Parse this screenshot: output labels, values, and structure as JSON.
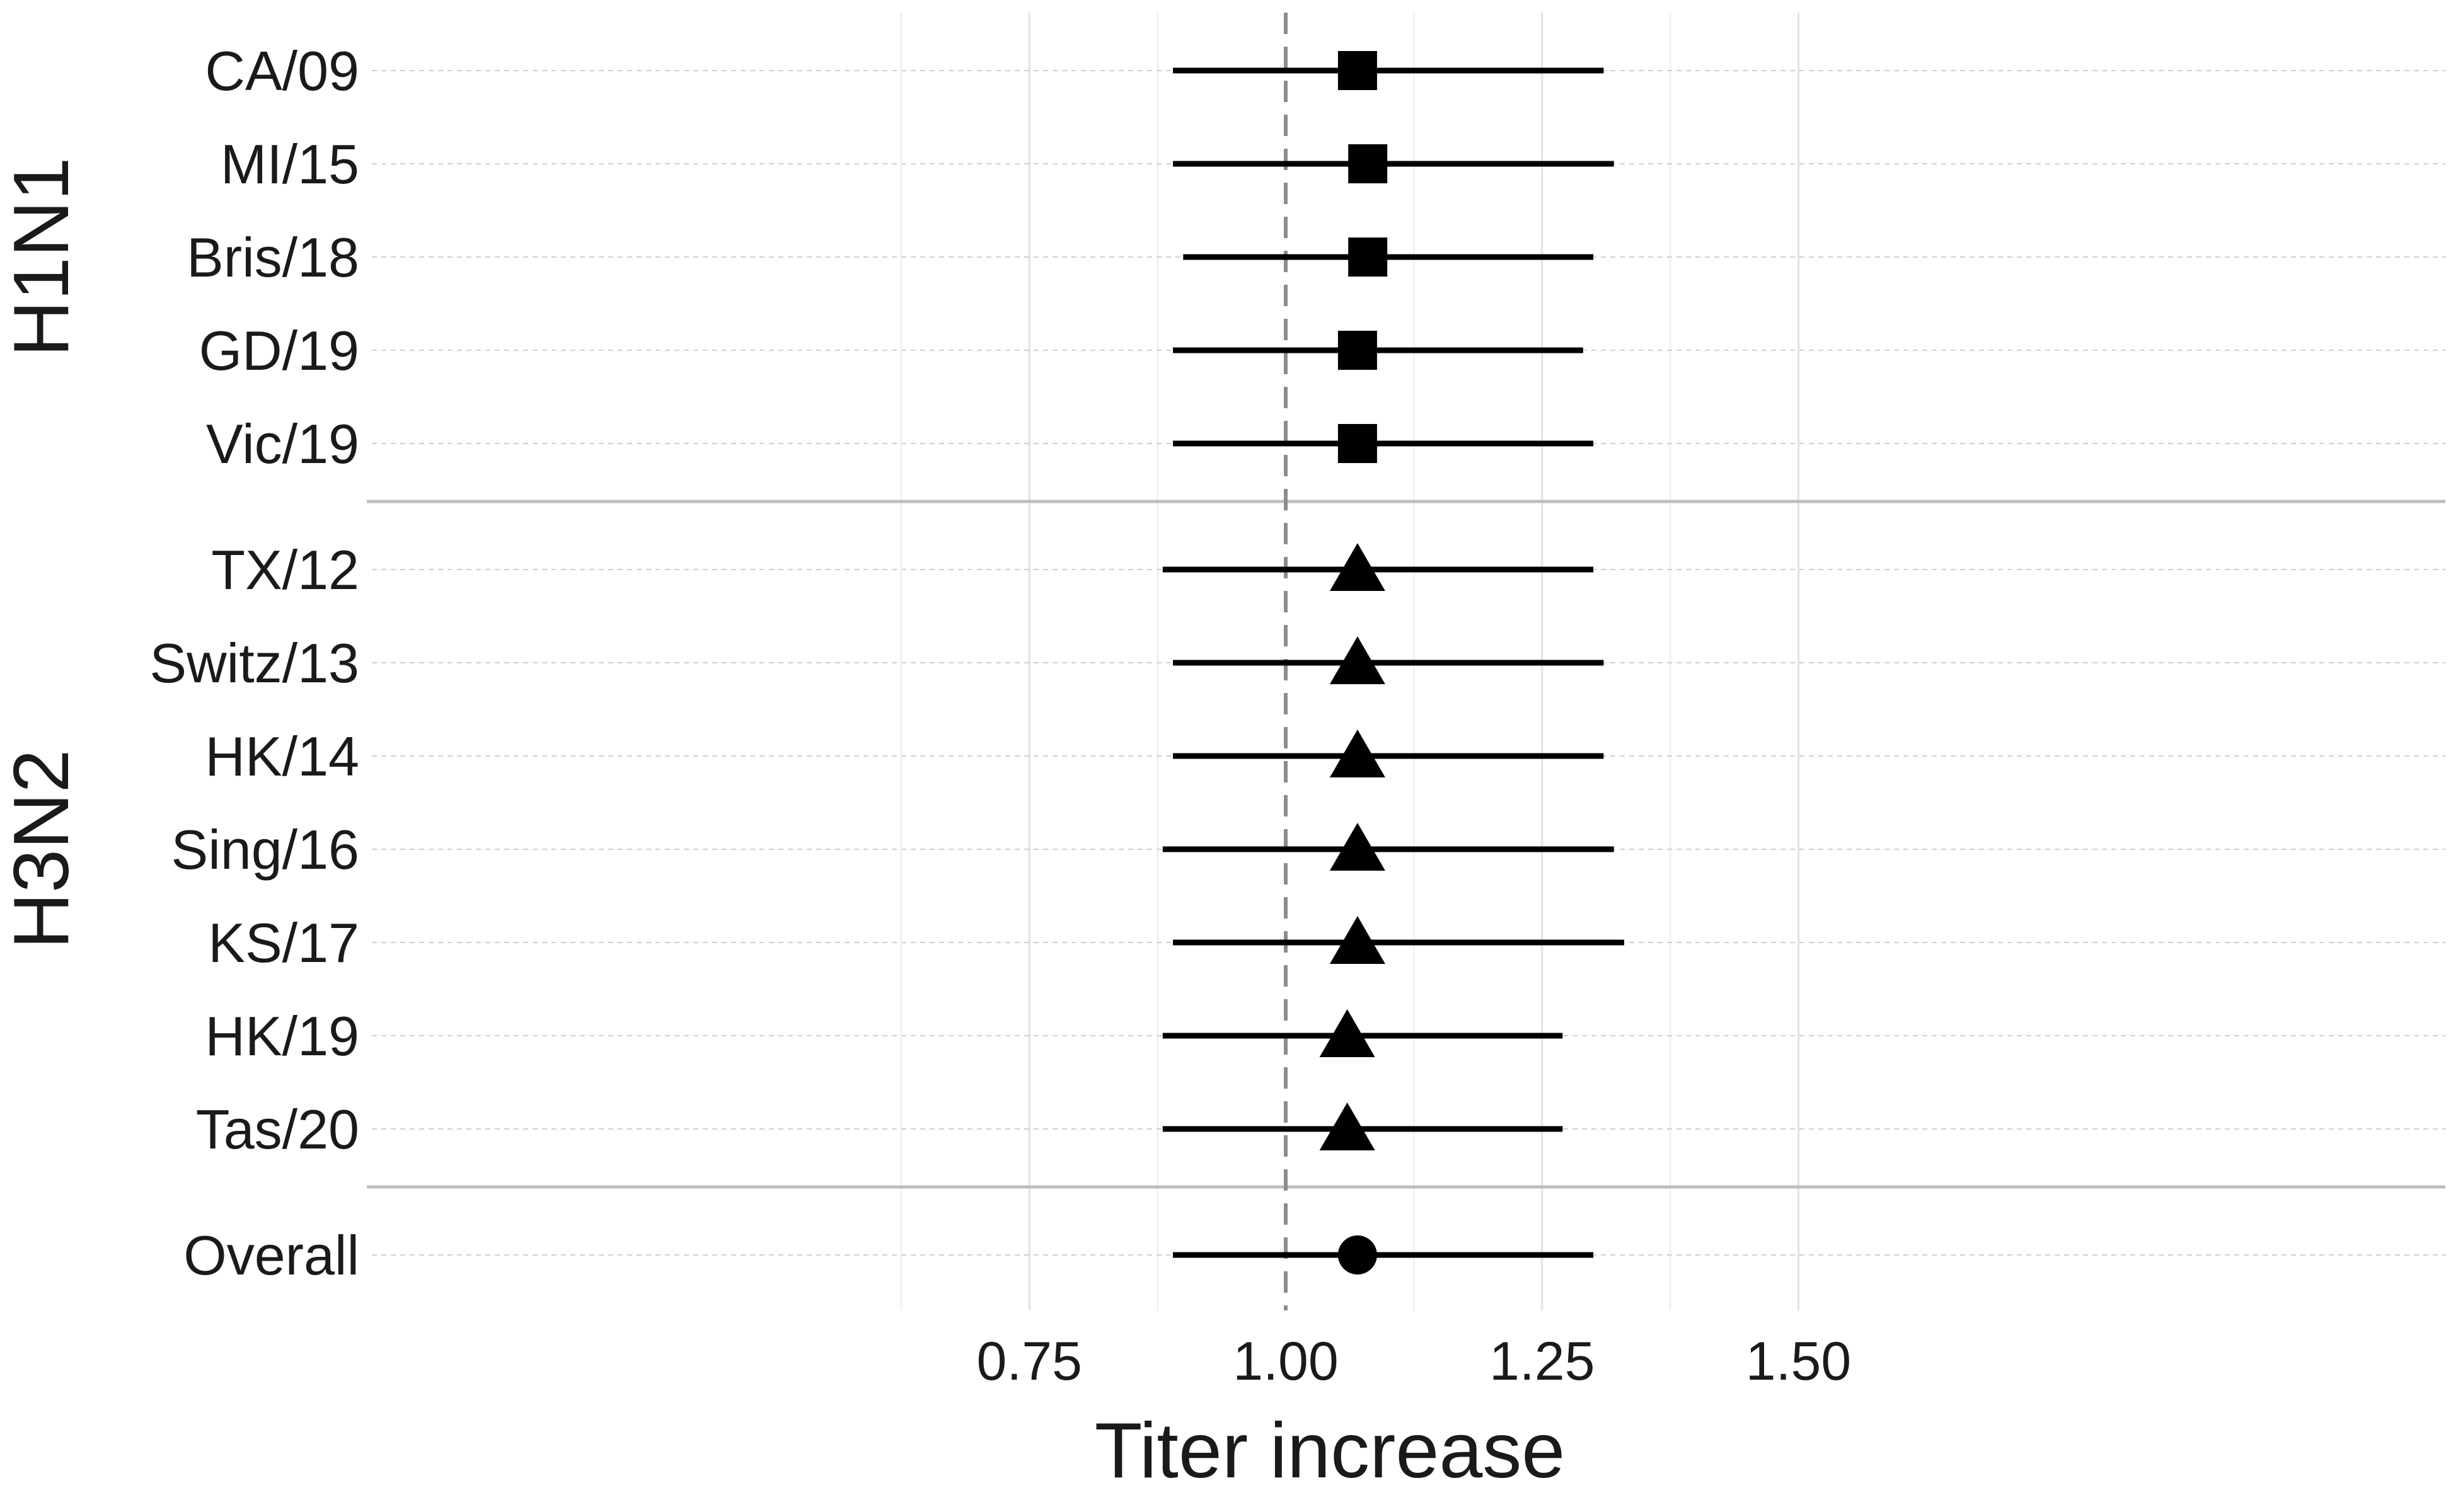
{
  "chart_data": {
    "type": "forest",
    "title": "",
    "xlabel": "Titer increase",
    "ylabel": "",
    "xlim": [
      0.5,
      1.55
    ],
    "xticks": [
      "0.75",
      "1.00",
      "1.25",
      "1.50"
    ],
    "reference_line": 1.0,
    "grid": true,
    "groups": [
      {
        "name": "H1N1",
        "marker": "square",
        "rows": [
          {
            "label": "CA/09",
            "estimate": 1.07,
            "lower": 0.89,
            "upper": 1.31
          },
          {
            "label": "MI/15",
            "estimate": 1.08,
            "lower": 0.89,
            "upper": 1.32
          },
          {
            "label": "Bris/18",
            "estimate": 1.08,
            "lower": 0.9,
            "upper": 1.3
          },
          {
            "label": "GD/19",
            "estimate": 1.07,
            "lower": 0.89,
            "upper": 1.29
          },
          {
            "label": "Vic/19",
            "estimate": 1.07,
            "lower": 0.89,
            "upper": 1.3
          }
        ]
      },
      {
        "name": "H3N2",
        "marker": "triangle",
        "rows": [
          {
            "label": "TX/12",
            "estimate": 1.07,
            "lower": 0.88,
            "upper": 1.3
          },
          {
            "label": "Switz/13",
            "estimate": 1.07,
            "lower": 0.89,
            "upper": 1.31
          },
          {
            "label": "HK/14",
            "estimate": 1.07,
            "lower": 0.89,
            "upper": 1.31
          },
          {
            "label": "Sing/16",
            "estimate": 1.07,
            "lower": 0.88,
            "upper": 1.32
          },
          {
            "label": "KS/17",
            "estimate": 1.07,
            "lower": 0.89,
            "upper": 1.33
          },
          {
            "label": "HK/19",
            "estimate": 1.06,
            "lower": 0.88,
            "upper": 1.27
          },
          {
            "label": "Tas/20",
            "estimate": 1.06,
            "lower": 0.88,
            "upper": 1.27
          }
        ]
      },
      {
        "name": "",
        "marker": "circle",
        "rows": [
          {
            "label": "Overall",
            "estimate": 1.07,
            "lower": 0.89,
            "upper": 1.3
          }
        ]
      }
    ]
  }
}
